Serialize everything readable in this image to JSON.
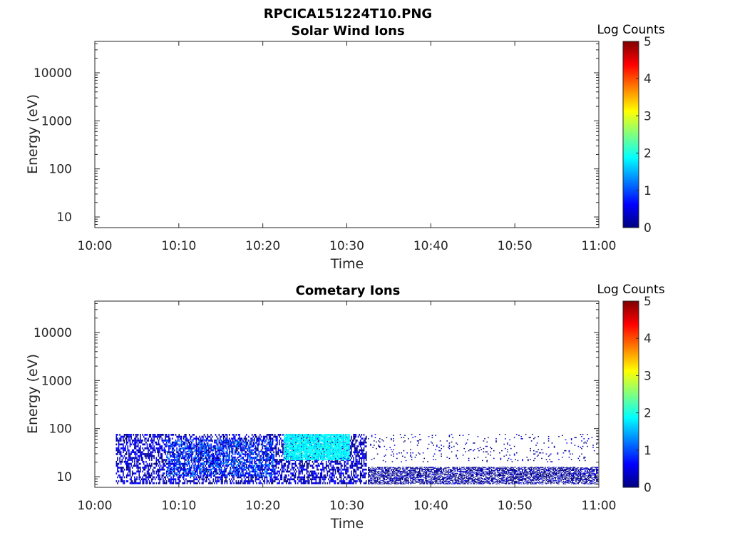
{
  "figure_title": "RPCICA151224T10.PNG",
  "colorbar_colors": [
    "#00007f",
    "#0000ff",
    "#007fff",
    "#00ffff",
    "#7fff7f",
    "#ffff00",
    "#ff7f00",
    "#ff0000",
    "#7f0000"
  ],
  "chart_data": [
    {
      "type": "heatmap",
      "title": "Solar Wind Ions",
      "xlabel": "Time",
      "ylabel": "Energy (eV)",
      "x_ticks": [
        "10:00",
        "10:10",
        "10:20",
        "10:30",
        "10:40",
        "10:50",
        "11:00"
      ],
      "x_range_minutes": [
        0,
        60
      ],
      "y_scale": "log",
      "y_ticks": [
        "10",
        "100",
        "1000",
        "10000"
      ],
      "y_range": [
        6,
        45000
      ],
      "colorbar": {
        "label": "Log Counts",
        "range": [
          0,
          5
        ],
        "ticks": [
          "0",
          "1",
          "2",
          "3",
          "4",
          "5"
        ],
        "colormap": "jet"
      },
      "blobs": []
    },
    {
      "type": "heatmap",
      "title": "Cometary Ions",
      "xlabel": "Time",
      "ylabel": "Energy (eV)",
      "x_ticks": [
        "10:00",
        "10:10",
        "10:20",
        "10:30",
        "10:40",
        "10:50",
        "11:00"
      ],
      "x_range_minutes": [
        0,
        60
      ],
      "y_scale": "log",
      "y_ticks": [
        "10",
        "100",
        "1000",
        "10000"
      ],
      "y_range": [
        6,
        45000
      ],
      "colorbar": {
        "label": "Log Counts",
        "range": [
          0,
          5
        ],
        "ticks": [
          "0",
          "1",
          "2",
          "3",
          "4",
          "5"
        ],
        "colormap": "jet"
      },
      "blobs": [
        {
          "t0": 2.5,
          "t1": 32.5,
          "e_lo": 7,
          "e_hi": 78,
          "level": 0.35,
          "density": 0.55
        },
        {
          "t0": 8.5,
          "t1": 21.5,
          "e_lo": 10,
          "e_hi": 60,
          "level": 1.0,
          "density": 0.35
        },
        {
          "t0": 22.5,
          "t1": 30.5,
          "e_lo": 22,
          "e_hi": 78,
          "level": 1.9,
          "density": 0.9
        },
        {
          "t0": 32.5,
          "t1": 60,
          "e_lo": 7,
          "e_hi": 16,
          "level": 0.15,
          "density": 0.6
        },
        {
          "t0": 32.5,
          "t1": 60,
          "e_lo": 20,
          "e_hi": 78,
          "level": 0.2,
          "density": 0.06
        }
      ]
    }
  ]
}
